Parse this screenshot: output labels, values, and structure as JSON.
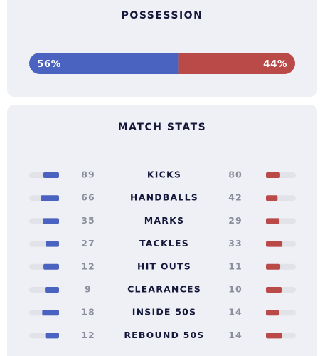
{
  "possession": {
    "title": "POSSESSION",
    "home": {
      "value": 56,
      "label": "56%"
    },
    "away": {
      "value": 44,
      "label": "44%"
    }
  },
  "stats": {
    "title": "MATCH STATS",
    "rows": [
      {
        "label": "KICKS",
        "home": 89,
        "away": 80
      },
      {
        "label": "HANDBALLS",
        "home": 66,
        "away": 42
      },
      {
        "label": "MARKS",
        "home": 35,
        "away": 29
      },
      {
        "label": "TACKLES",
        "home": 27,
        "away": 33
      },
      {
        "label": "HIT OUTS",
        "home": 12,
        "away": 11
      },
      {
        "label": "CLEARANCES",
        "home": 9,
        "away": 10
      },
      {
        "label": "INSIDE 50S",
        "home": 18,
        "away": 14
      },
      {
        "label": "REBOUND 50S",
        "home": 12,
        "away": 14
      }
    ]
  }
}
